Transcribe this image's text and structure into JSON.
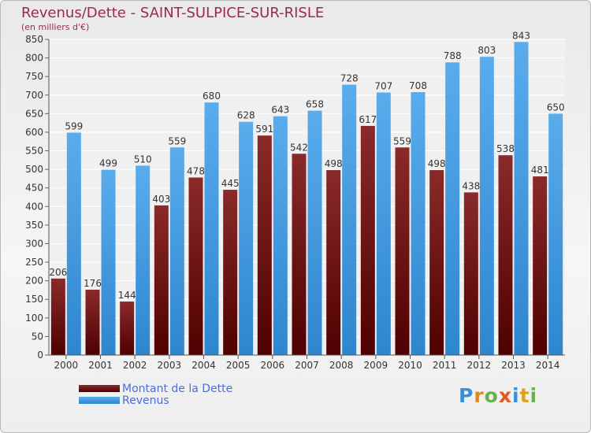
{
  "title": "Revenus/Dette - SAINT-SULPICE-SUR-RISLE",
  "subtitle": "(en milliers d'€)",
  "logo_text": "Proxiti",
  "colors": {
    "dette": "#7a1a1a",
    "revenus": "#3b95de",
    "title": "#a0265a",
    "legend_text": "#4a6de0"
  },
  "chart_data": {
    "type": "bar",
    "categories": [
      "2000",
      "2001",
      "2002",
      "2003",
      "2004",
      "2005",
      "2006",
      "2007",
      "2008",
      "2009",
      "2010",
      "2011",
      "2012",
      "2013",
      "2014"
    ],
    "series": [
      {
        "name": "Montant de la Dette",
        "values": [
          206,
          176,
          144,
          403,
          478,
          445,
          591,
          542,
          498,
          617,
          559,
          498,
          438,
          538,
          481
        ]
      },
      {
        "name": "Revenus",
        "values": [
          599,
          499,
          510,
          559,
          680,
          628,
          643,
          658,
          728,
          707,
          708,
          788,
          803,
          843,
          650
        ]
      }
    ],
    "ylim": [
      0,
      850
    ],
    "yticks": [
      0,
      50,
      100,
      150,
      200,
      250,
      300,
      350,
      400,
      450,
      500,
      550,
      600,
      650,
      700,
      750,
      800,
      850
    ],
    "grid": true,
    "legend": "bottom-left"
  }
}
